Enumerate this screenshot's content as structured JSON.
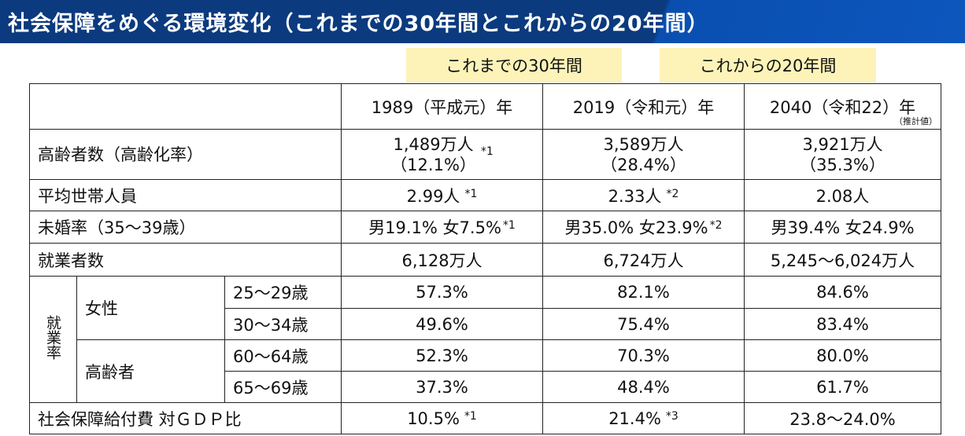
{
  "title": "社会保障をめぐる環境変化（これまでの30年間とこれからの20年間）",
  "periods": {
    "past": "これまでの30年間",
    "future": "これからの20年間"
  },
  "columns": [
    "1989（平成元）年",
    "2019（令和元）年",
    "2040（令和22）年"
  ],
  "column_note": "（推計値）",
  "rows": {
    "elderly": {
      "label": "高齢者数（高齢化率）",
      "v1a": "1,489万人",
      "v1b": "（12.1%）",
      "n1": "*1",
      "v2a": "3,589万人",
      "v2b": "（28.4%）",
      "v3a": "3,921万人",
      "v3b": "（35.3%）"
    },
    "household": {
      "label": "平均世帯人員",
      "v1": "2.99人",
      "n1": "*1",
      "v2": "2.33人",
      "n2": "*2",
      "v3": "2.08人"
    },
    "unmarried": {
      "label": "未婚率（35～39歳）",
      "v1": "男19.1% 女7.5%",
      "n1": "*1",
      "v2": "男35.0% 女23.9%",
      "n2": "*2",
      "v3": "男39.4% 女24.9%"
    },
    "workers": {
      "label": "就業者数",
      "v1": "6,128万人",
      "v2": "6,724万人",
      "v3": "5,245～6,024万人"
    },
    "employment_rate": {
      "label": "就業率",
      "groups": [
        {
          "label": "女性",
          "rows": [
            {
              "age": "25～29歳",
              "v": [
                "57.3%",
                "82.1%",
                "84.6%"
              ]
            },
            {
              "age": "30～34歳",
              "v": [
                "49.6%",
                "75.4%",
                "83.4%"
              ]
            }
          ]
        },
        {
          "label": "高齢者",
          "rows": [
            {
              "age": "60～64歳",
              "v": [
                "52.3%",
                "70.3%",
                "80.0%"
              ]
            },
            {
              "age": "65～69歳",
              "v": [
                "37.3%",
                "48.4%",
                "61.7%"
              ]
            }
          ]
        }
      ]
    },
    "social_security": {
      "label": "社会保障給付費 対ＧＤＰ比",
      "v1": "10.5%",
      "n1": "*1",
      "v2": "21.4%",
      "n2": "*3",
      "v3": "23.8～24.0%"
    }
  },
  "colors": {
    "title_bar": "#0b3a7e",
    "period_highlight": "#fdf3b8"
  }
}
